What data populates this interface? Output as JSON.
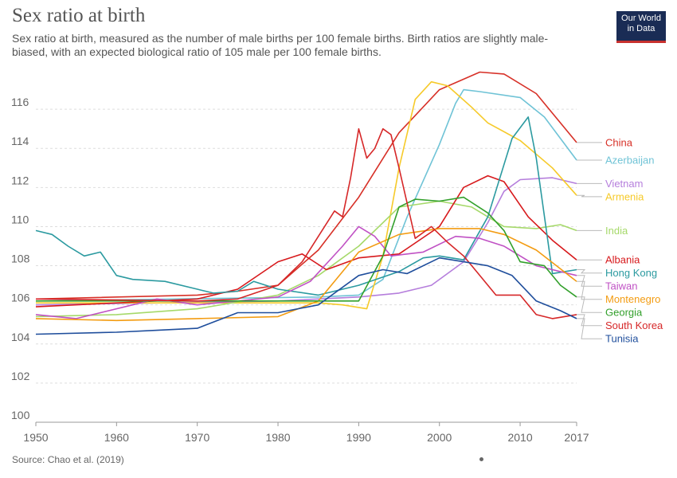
{
  "header": {
    "title": "Sex ratio at birth",
    "subtitle": "Sex ratio at birth, measured as the number of male births per 100 female births. Birth ratios are slightly male-biased, with an expected biological ratio of 105 male per 100 female births.",
    "logo_line1": "Our World",
    "logo_line2": "in Data"
  },
  "footer": {
    "source": "Source: Chao et al. (2019)"
  },
  "colors": {
    "logo_bg": "#1a2c55",
    "logo_accent": "#c8312f"
  },
  "chart_data": {
    "type": "line",
    "xlim": [
      1950,
      2017
    ],
    "ylim": [
      100,
      118
    ],
    "x_ticks": [
      "1950",
      "1960",
      "1970",
      "1980",
      "1990",
      "2000",
      "2010",
      "2017"
    ],
    "y_ticks": [
      "100",
      "102",
      "104",
      "106",
      "108",
      "110",
      "112",
      "114",
      "116"
    ],
    "grid": "horizontal dashed",
    "legend": "right, labels at line ends",
    "series": [
      {
        "name": "China",
        "color": "#d73027",
        "points": [
          [
            1950,
            106.3
          ],
          [
            1970,
            106.5
          ],
          [
            1975,
            106.7
          ],
          [
            1980,
            107.0
          ],
          [
            1985,
            108.8
          ],
          [
            1990,
            111.5
          ],
          [
            1995,
            114.8
          ],
          [
            2000,
            117.0
          ],
          [
            2005,
            117.9
          ],
          [
            2008,
            117.8
          ],
          [
            2012,
            116.8
          ],
          [
            2017,
            114.3
          ]
        ]
      },
      {
        "name": "Azerbaijan",
        "color": "#6fc3d6",
        "points": [
          [
            1950,
            106.2
          ],
          [
            1985,
            106.4
          ],
          [
            1990,
            106.5
          ],
          [
            1993,
            107.3
          ],
          [
            1996,
            110.5
          ],
          [
            2000,
            114.2
          ],
          [
            2002,
            116.3
          ],
          [
            2003,
            117.0
          ],
          [
            2005,
            116.9
          ],
          [
            2010,
            116.6
          ],
          [
            2013,
            115.6
          ],
          [
            2017,
            113.4
          ]
        ]
      },
      {
        "name": "Vietnam",
        "color": "#b57edc",
        "points": [
          [
            1950,
            106.0
          ],
          [
            1980,
            106.2
          ],
          [
            1990,
            106.4
          ],
          [
            1995,
            106.6
          ],
          [
            1999,
            107.0
          ],
          [
            2003,
            108.2
          ],
          [
            2006,
            110.2
          ],
          [
            2008,
            111.8
          ],
          [
            2010,
            112.4
          ],
          [
            2014,
            112.5
          ],
          [
            2017,
            112.2
          ]
        ]
      },
      {
        "name": "Armenia",
        "color": "#f6ca2a",
        "points": [
          [
            1950,
            106.1
          ],
          [
            1985,
            106.1
          ],
          [
            1988,
            106.0
          ],
          [
            1991,
            105.8
          ],
          [
            1993,
            108.5
          ],
          [
            1995,
            113.0
          ],
          [
            1997,
            116.5
          ],
          [
            1999,
            117.4
          ],
          [
            2001,
            117.2
          ],
          [
            2004,
            116.1
          ],
          [
            2006,
            115.3
          ],
          [
            2010,
            114.4
          ],
          [
            2014,
            113.0
          ],
          [
            2017,
            111.6
          ]
        ]
      },
      {
        "name": "India",
        "color": "#a6d96a",
        "points": [
          [
            1950,
            105.4
          ],
          [
            1960,
            105.5
          ],
          [
            1970,
            105.8
          ],
          [
            1980,
            106.5
          ],
          [
            1985,
            107.5
          ],
          [
            1990,
            109.0
          ],
          [
            1995,
            111.0
          ],
          [
            2000,
            111.3
          ],
          [
            2004,
            111.0
          ],
          [
            2008,
            110.0
          ],
          [
            2012,
            109.9
          ],
          [
            2015,
            110.1
          ],
          [
            2017,
            109.8
          ]
        ]
      },
      {
        "name": "Albania",
        "color": "#d7191c",
        "points": [
          [
            1950,
            105.9
          ],
          [
            1970,
            106.3
          ],
          [
            1975,
            106.8
          ],
          [
            1980,
            108.2
          ],
          [
            1983,
            108.6
          ],
          [
            1986,
            107.8
          ],
          [
            1990,
            108.4
          ],
          [
            1995,
            108.6
          ],
          [
            2000,
            110.0
          ],
          [
            2003,
            112.0
          ],
          [
            2006,
            112.6
          ],
          [
            2008,
            112.3
          ],
          [
            2011,
            110.5
          ],
          [
            2014,
            109.3
          ],
          [
            2017,
            108.3
          ]
        ]
      },
      {
        "name": "Hong Kong",
        "color": "#2b9aa0",
        "points": [
          [
            1950,
            109.8
          ],
          [
            1952,
            109.6
          ],
          [
            1954,
            109.0
          ],
          [
            1956,
            108.5
          ],
          [
            1958,
            108.7
          ],
          [
            1960,
            107.5
          ],
          [
            1962,
            107.3
          ],
          [
            1966,
            107.2
          ],
          [
            1970,
            106.8
          ],
          [
            1972,
            106.6
          ],
          [
            1975,
            106.7
          ],
          [
            1977,
            107.2
          ],
          [
            1980,
            106.8
          ],
          [
            1985,
            106.5
          ],
          [
            1990,
            107.0
          ],
          [
            1995,
            107.7
          ],
          [
            1998,
            108.4
          ],
          [
            2000,
            108.5
          ],
          [
            2003,
            108.3
          ],
          [
            2006,
            110.5
          ],
          [
            2009,
            114.5
          ],
          [
            2011,
            115.6
          ],
          [
            2012,
            113.5
          ],
          [
            2014,
            107.6
          ],
          [
            2017,
            107.8
          ]
        ]
      },
      {
        "name": "Taiwan",
        "color": "#c051c4",
        "points": [
          [
            1950,
            105.5
          ],
          [
            1955,
            105.3
          ],
          [
            1965,
            106.3
          ],
          [
            1970,
            106.0
          ],
          [
            1975,
            106.2
          ],
          [
            1980,
            106.4
          ],
          [
            1984,
            107.2
          ],
          [
            1988,
            109.0
          ],
          [
            1990,
            110.0
          ],
          [
            1992,
            109.5
          ],
          [
            1994,
            108.5
          ],
          [
            1998,
            108.7
          ],
          [
            2002,
            109.5
          ],
          [
            2005,
            109.4
          ],
          [
            2008,
            109.0
          ],
          [
            2012,
            108.0
          ],
          [
            2017,
            107.5
          ]
        ]
      },
      {
        "name": "Montenegro",
        "color": "#f39c12",
        "points": [
          [
            1950,
            105.3
          ],
          [
            1960,
            105.2
          ],
          [
            1970,
            105.3
          ],
          [
            1980,
            105.4
          ],
          [
            1985,
            106.2
          ],
          [
            1990,
            108.7
          ],
          [
            1995,
            109.6
          ],
          [
            2000,
            109.9
          ],
          [
            2005,
            109.9
          ],
          [
            2008,
            109.6
          ],
          [
            2012,
            108.8
          ],
          [
            2017,
            107.2
          ]
        ]
      },
      {
        "name": "Georgia",
        "color": "#33a02c",
        "points": [
          [
            1950,
            106.2
          ],
          [
            1980,
            106.2
          ],
          [
            1990,
            106.2
          ],
          [
            1993,
            108.5
          ],
          [
            1995,
            111.0
          ],
          [
            1997,
            111.4
          ],
          [
            2000,
            111.3
          ],
          [
            2003,
            111.5
          ],
          [
            2006,
            110.7
          ],
          [
            2008,
            109.8
          ],
          [
            2010,
            108.2
          ],
          [
            2013,
            108.0
          ],
          [
            2015,
            107.0
          ],
          [
            2017,
            106.4
          ]
        ]
      },
      {
        "name": "South Korea",
        "color": "#d62728",
        "points": [
          [
            1950,
            106.3
          ],
          [
            1970,
            106.2
          ],
          [
            1975,
            106.3
          ],
          [
            1980,
            107.0
          ],
          [
            1983,
            108.2
          ],
          [
            1985,
            109.5
          ],
          [
            1987,
            110.8
          ],
          [
            1988,
            110.5
          ],
          [
            1989,
            112.5
          ],
          [
            1990,
            115.0
          ],
          [
            1991,
            113.5
          ],
          [
            1992,
            114.0
          ],
          [
            1993,
            115.0
          ],
          [
            1994,
            114.7
          ],
          [
            1995,
            113.0
          ],
          [
            1997,
            109.4
          ],
          [
            1999,
            110.0
          ],
          [
            2001,
            109.2
          ],
          [
            2003,
            108.5
          ],
          [
            2005,
            107.5
          ],
          [
            2007,
            106.5
          ],
          [
            2010,
            106.5
          ],
          [
            2012,
            105.5
          ],
          [
            2014,
            105.3
          ],
          [
            2017,
            105.5
          ]
        ]
      },
      {
        "name": "Tunisia",
        "color": "#1f4e9c",
        "points": [
          [
            1950,
            104.5
          ],
          [
            1960,
            104.6
          ],
          [
            1965,
            104.7
          ],
          [
            1970,
            104.8
          ],
          [
            1975,
            105.6
          ],
          [
            1980,
            105.6
          ],
          [
            1985,
            106.0
          ],
          [
            1990,
            107.5
          ],
          [
            1993,
            107.8
          ],
          [
            1996,
            107.6
          ],
          [
            2000,
            108.4
          ],
          [
            2003,
            108.2
          ],
          [
            2006,
            108.0
          ],
          [
            2009,
            107.5
          ],
          [
            2012,
            106.2
          ],
          [
            2015,
            105.7
          ],
          [
            2017,
            105.3
          ]
        ]
      }
    ]
  }
}
